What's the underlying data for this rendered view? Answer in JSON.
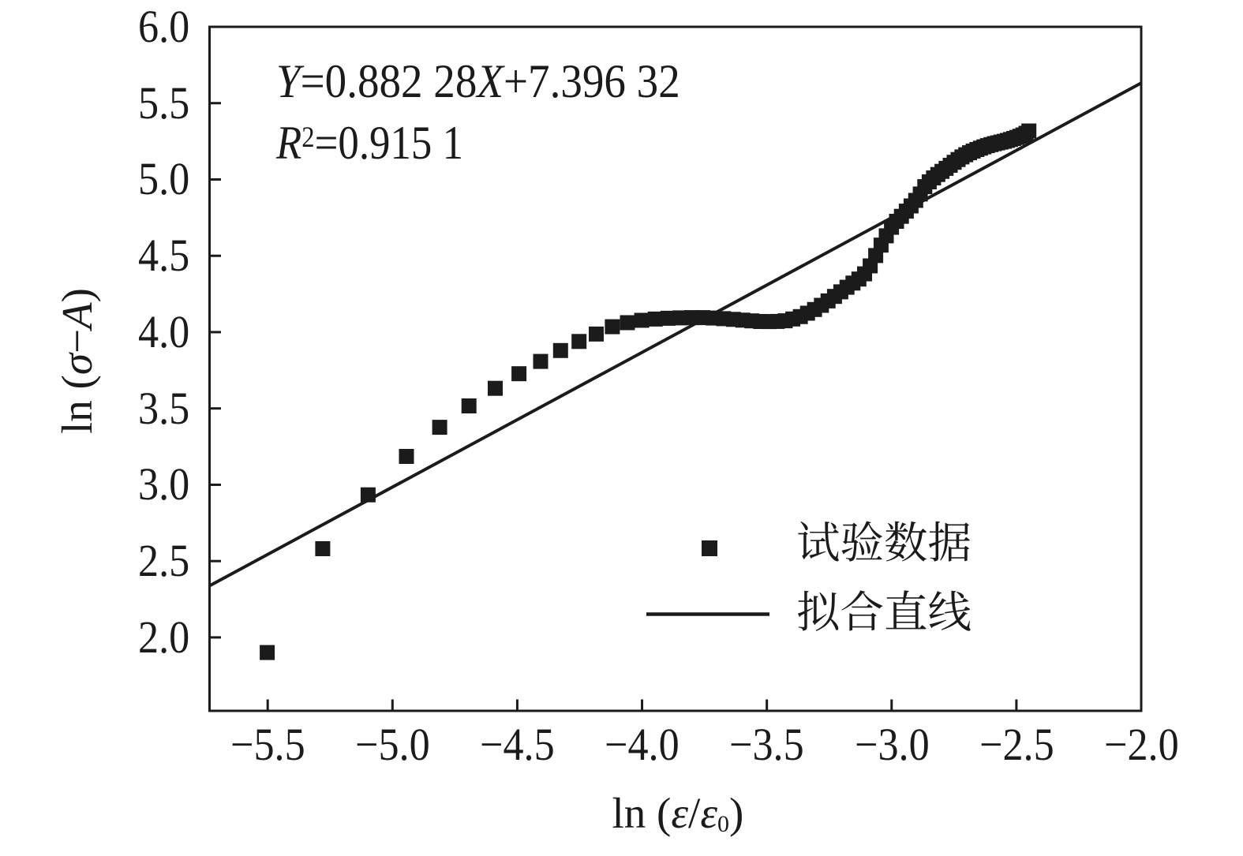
{
  "figure": {
    "background": "#ffffff",
    "ink_color": "#1b1b1b"
  },
  "chart_data": {
    "type": "scatter",
    "title": "",
    "xlabel": "ln (ε/ε₀)",
    "ylabel": "ln (σ−A)",
    "xlim": [
      -5.733,
      -2.0
    ],
    "ylim": [
      1.519,
      6.0
    ],
    "grid": false,
    "x_ticks": {
      "values": [
        -5.5,
        -5.0,
        -4.5,
        -4.0,
        -3.5,
        -3.0,
        -2.5,
        -2.0
      ],
      "labels": [
        "−5.5",
        "−5.0",
        "−4.5",
        "−4.0",
        "−3.5",
        "−3.0",
        "−2.5",
        "−2.0"
      ]
    },
    "y_ticks": {
      "values": [
        2.0,
        2.5,
        3.0,
        3.5,
        4.0,
        4.5,
        5.0,
        5.5,
        6.0
      ],
      "labels": [
        "2.0",
        "2.5",
        "3.0",
        "3.5",
        "4.0",
        "4.5",
        "5.0",
        "5.5",
        "6.0"
      ]
    },
    "series": [
      {
        "name": "试验数据",
        "type": "scatter",
        "marker": "square",
        "color": "#1b1b1b",
        "points": [
          [
            -5.5017,
            1.901
          ],
          [
            -5.2795,
            2.5812
          ],
          [
            -5.0978,
            2.9339
          ],
          [
            -4.9441,
            3.1859
          ],
          [
            -4.811,
            3.3765
          ],
          [
            -4.6935,
            3.5164
          ],
          [
            -4.5883,
            3.632
          ],
          [
            -4.4932,
            3.7275
          ],
          [
            -4.4063,
            3.8079
          ],
          [
            -4.3264,
            3.8794
          ],
          [
            -4.2524,
            3.939
          ],
          [
            -4.1835,
            3.9873
          ],
          [
            -4.119,
            4.0356
          ],
          [
            -4.0585,
            4.0617
          ],
          [
            -4.0014,
            4.0771
          ],
          [
            -3.9474,
            4.0854
          ],
          [
            -3.8961,
            4.0908
          ],
          [
            -3.8474,
            4.0936
          ],
          [
            -3.8009,
            4.095
          ],
          [
            -3.7565,
            4.0949
          ],
          [
            -3.714,
            4.0924
          ],
          [
            -3.6732,
            4.0881
          ],
          [
            -3.634,
            4.0834
          ],
          [
            -3.5963,
            4.0785
          ],
          [
            -3.56,
            4.0739
          ],
          [
            -3.5249,
            4.0697
          ],
          [
            -3.491,
            4.0692
          ],
          [
            -3.4582,
            4.0703
          ],
          [
            -3.4265,
            4.0745
          ],
          [
            -3.3958,
            4.0861
          ],
          [
            -3.3659,
            4.1018
          ],
          [
            -3.337,
            4.1239
          ],
          [
            -3.3088,
            4.1481
          ],
          [
            -3.2814,
            4.1755
          ],
          [
            -3.2548,
            4.2045
          ],
          [
            -3.2288,
            4.2338
          ],
          [
            -3.2035,
            4.264
          ],
          [
            -3.1788,
            4.294
          ],
          [
            -3.1547,
            4.3211
          ],
          [
            -3.1312,
            4.3479
          ],
          [
            -3.1082,
            4.3816
          ],
          [
            -3.0858,
            4.434
          ],
          [
            -3.0638,
            4.5019
          ],
          [
            -3.0423,
            4.5697
          ],
          [
            -3.0213,
            4.6309
          ],
          [
            -3.0006,
            4.6868
          ],
          [
            -2.9804,
            4.7262
          ],
          [
            -2.9607,
            4.7584
          ],
          [
            -2.9412,
            4.7926
          ],
          [
            -2.9222,
            4.827
          ],
          [
            -2.9035,
            4.8632
          ],
          [
            -2.8852,
            4.9047
          ],
          [
            -2.8672,
            4.9527
          ],
          [
            -2.8495,
            4.9842
          ],
          [
            -2.8321,
            5.0102
          ],
          [
            -2.815,
            5.0326
          ],
          [
            -2.7982,
            5.053
          ],
          [
            -2.7817,
            5.0729
          ],
          [
            -2.7654,
            5.093
          ],
          [
            -2.7494,
            5.1124
          ],
          [
            -2.7337,
            5.1308
          ],
          [
            -2.7182,
            5.1475
          ],
          [
            -2.7029,
            5.1623
          ],
          [
            -2.6879,
            5.1749
          ],
          [
            -2.6731,
            5.1861
          ],
          [
            -2.6585,
            5.1961
          ],
          [
            -2.6441,
            5.2053
          ],
          [
            -2.6299,
            5.2137
          ],
          [
            -2.6159,
            5.2214
          ],
          [
            -2.6021,
            5.2284
          ],
          [
            -2.5885,
            5.2345
          ],
          [
            -2.5751,
            5.2399
          ],
          [
            -2.5619,
            5.245
          ],
          [
            -2.5488,
            5.2502
          ],
          [
            -2.5359,
            5.2557
          ],
          [
            -2.5232,
            5.2619
          ],
          [
            -2.5106,
            5.2685
          ],
          [
            -2.4982,
            5.2753
          ],
          [
            -2.4859,
            5.2829
          ],
          [
            -2.4738,
            5.2916
          ],
          [
            -2.4618,
            5.3022
          ],
          [
            -2.45,
            5.318
          ]
        ]
      },
      {
        "name": "拟合直线",
        "type": "line",
        "color": "#1b1b1b",
        "fit_line": {
          "slope": 0.88228,
          "intercept": 7.39632
        }
      }
    ],
    "legend": {
      "position": "inside-right-bottom",
      "entries": [
        {
          "marker": "square",
          "label": "试验数据"
        },
        {
          "marker": "line",
          "label": "拟合直线"
        }
      ]
    },
    "annotations": [
      "Y=0.882 28X+7.396 32",
      "R²=0.915 1"
    ]
  },
  "annotation": {
    "y_var": "Y",
    "eq1": "=0.882 28",
    "x_var": "X",
    "eq2": "+7.396 32",
    "r_var": "R",
    "r_sup": "2",
    "r_eq": "=0.915 1"
  },
  "xlabel_parts": {
    "pre": "ln (",
    "eps1": "ε",
    "slash": "/",
    "eps2": "ε",
    "sub": "0",
    "post": ")"
  },
  "ylabel_parts": {
    "pre": "ln (",
    "sigma": "σ",
    "minus": "−",
    "a_var": "A",
    "post": ")"
  }
}
